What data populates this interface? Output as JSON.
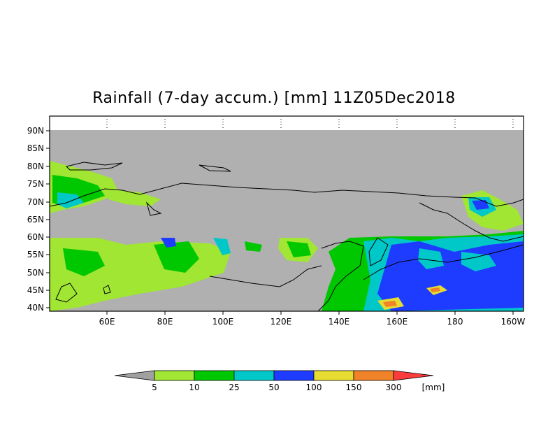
{
  "title": "Rainfall (7-day accum.) [mm] 11Z05Dec2018",
  "map": {
    "lat_labels": [
      "90N",
      "85N",
      "80N",
      "75N",
      "70N",
      "65N",
      "60N",
      "55N",
      "50N",
      "45N",
      "40N"
    ],
    "lon_labels": [
      "60E",
      "80E",
      "100E",
      "120E",
      "140E",
      "160E",
      "180",
      "160W"
    ],
    "no_data_color": "#b0b0b0"
  },
  "legend": {
    "unit": "[mm]",
    "bins": [
      {
        "label": "5",
        "color": "#a0e632"
      },
      {
        "label": "10",
        "color": "#00c800"
      },
      {
        "label": "25",
        "color": "#00c8c8"
      },
      {
        "label": "50",
        "color": "#1e3cff"
      },
      {
        "label": "100",
        "color": "#e6dc32"
      },
      {
        "label": "150",
        "color": "#f08228"
      },
      {
        "label": "300",
        "color": "#fa3c3c"
      }
    ],
    "under_color": "#a0a0a0",
    "over_color": "#fa3c3c"
  }
}
